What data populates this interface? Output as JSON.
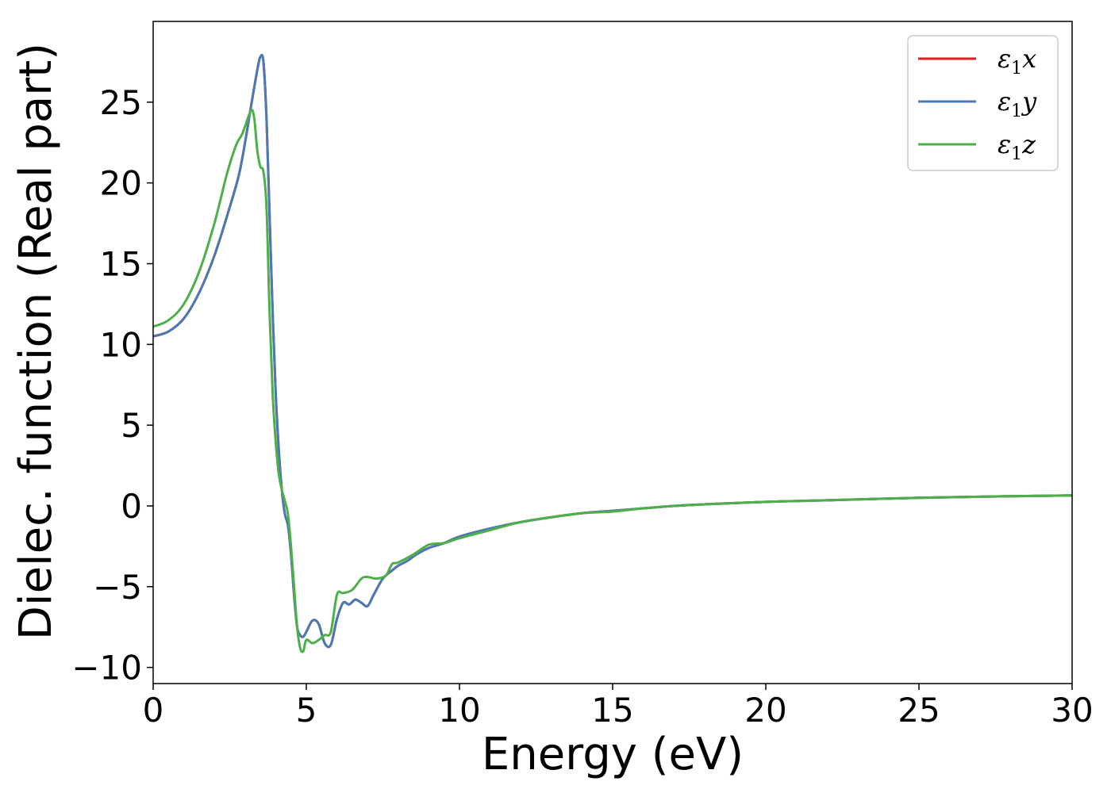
{
  "chart_data": {
    "type": "line",
    "xlabel": "Energy (eV)",
    "ylabel": "Dielec. function (Real part)",
    "xlim": [
      0,
      30
    ],
    "ylim": [
      -11,
      30
    ],
    "xticks": [
      0,
      5,
      10,
      15,
      20,
      25,
      30
    ],
    "yticks": [
      -10,
      -5,
      0,
      5,
      10,
      15,
      20,
      25
    ],
    "xtick_labels": [
      "0",
      "5",
      "10",
      "15",
      "20",
      "25",
      "30"
    ],
    "ytick_labels": [
      "−10",
      "−5",
      "0",
      "5",
      "10",
      "15",
      "20",
      "25"
    ],
    "grid": false,
    "legend_position": "top-right",
    "series": [
      {
        "name": "ε₁x",
        "legend_base": "ε",
        "legend_sub": "1",
        "legend_tail": "x",
        "color": "#e41a1c",
        "x": [
          0,
          0.5,
          1.0,
          1.5,
          2.0,
          2.5,
          2.8,
          3.0,
          3.2,
          3.4,
          3.5,
          3.6,
          3.7,
          3.8,
          3.9,
          4.0,
          4.1,
          4.2,
          4.3,
          4.4,
          4.5,
          4.6,
          4.7,
          4.8,
          4.9,
          5.0,
          5.2,
          5.4,
          5.6,
          5.8,
          6.0,
          6.2,
          6.4,
          6.6,
          6.8,
          7.0,
          7.2,
          7.5,
          7.8,
          8.0,
          8.3,
          8.6,
          9.0,
          9.5,
          10.0,
          11.0,
          12.0,
          13.0,
          14.0,
          15.0,
          16.0,
          17.0,
          18.0,
          20.0,
          22.0,
          25.0,
          28.0,
          30.0
        ],
        "y": [
          10.5,
          10.8,
          11.6,
          13.2,
          15.5,
          18.5,
          20.5,
          22.5,
          24.8,
          27.0,
          27.8,
          27.5,
          24.0,
          18.0,
          12.0,
          7.0,
          3.5,
          1.0,
          -0.5,
          -1.2,
          -3.0,
          -5.5,
          -7.5,
          -8.0,
          -8.1,
          -7.8,
          -7.1,
          -7.3,
          -8.5,
          -8.6,
          -7.0,
          -6.0,
          -6.1,
          -5.8,
          -6.0,
          -6.2,
          -5.5,
          -4.5,
          -4.0,
          -3.7,
          -3.4,
          -3.0,
          -2.6,
          -2.3,
          -1.9,
          -1.4,
          -1.0,
          -0.7,
          -0.45,
          -0.3,
          -0.15,
          0.0,
          0.1,
          0.25,
          0.35,
          0.5,
          0.6,
          0.65
        ]
      },
      {
        "name": "ε₁y",
        "legend_base": "ε",
        "legend_sub": "1",
        "legend_tail": "y",
        "color": "#4a7ab4",
        "x": [
          0,
          0.5,
          1.0,
          1.5,
          2.0,
          2.5,
          2.8,
          3.0,
          3.2,
          3.4,
          3.5,
          3.6,
          3.7,
          3.8,
          3.9,
          4.0,
          4.1,
          4.2,
          4.3,
          4.4,
          4.5,
          4.6,
          4.7,
          4.8,
          4.9,
          5.0,
          5.2,
          5.4,
          5.6,
          5.8,
          6.0,
          6.2,
          6.4,
          6.6,
          6.8,
          7.0,
          7.2,
          7.5,
          7.8,
          8.0,
          8.3,
          8.6,
          9.0,
          9.5,
          10.0,
          11.0,
          12.0,
          13.0,
          14.0,
          15.0,
          16.0,
          17.0,
          18.0,
          20.0,
          22.0,
          25.0,
          28.0,
          30.0
        ],
        "y": [
          10.5,
          10.8,
          11.6,
          13.2,
          15.5,
          18.5,
          20.5,
          22.5,
          24.8,
          27.0,
          27.8,
          27.5,
          24.0,
          18.0,
          12.0,
          7.0,
          3.5,
          1.0,
          -0.5,
          -1.2,
          -3.0,
          -5.5,
          -7.5,
          -8.0,
          -8.1,
          -7.8,
          -7.1,
          -7.3,
          -8.5,
          -8.6,
          -7.0,
          -6.0,
          -6.1,
          -5.8,
          -6.0,
          -6.2,
          -5.5,
          -4.5,
          -4.0,
          -3.7,
          -3.4,
          -3.0,
          -2.6,
          -2.3,
          -1.9,
          -1.4,
          -1.0,
          -0.7,
          -0.45,
          -0.3,
          -0.15,
          0.0,
          0.1,
          0.25,
          0.35,
          0.5,
          0.6,
          0.65
        ]
      },
      {
        "name": "ε₁z",
        "legend_base": "ε",
        "legend_sub": "1",
        "legend_tail": "z",
        "color": "#4daf4a",
        "x": [
          0,
          0.5,
          1.0,
          1.5,
          2.0,
          2.4,
          2.7,
          2.9,
          3.0,
          3.2,
          3.3,
          3.4,
          3.5,
          3.6,
          3.7,
          3.8,
          3.9,
          4.0,
          4.1,
          4.2,
          4.3,
          4.4,
          4.5,
          4.6,
          4.7,
          4.8,
          4.9,
          5.0,
          5.2,
          5.4,
          5.6,
          5.8,
          6.0,
          6.2,
          6.5,
          6.8,
          7.0,
          7.3,
          7.6,
          7.8,
          8.0,
          8.5,
          9.0,
          9.5,
          10.0,
          11.0,
          12.0,
          13.0,
          14.0,
          15.0,
          16.0,
          17.0,
          18.0,
          20.0,
          22.0,
          25.0,
          28.0,
          30.0
        ],
        "y": [
          11.1,
          11.5,
          12.5,
          14.5,
          17.5,
          20.5,
          22.3,
          23.0,
          23.5,
          24.5,
          24.0,
          22.0,
          21.0,
          20.7,
          18.5,
          12.0,
          7.0,
          4.0,
          2.0,
          1.0,
          0.3,
          -0.5,
          -2.5,
          -5.0,
          -7.5,
          -8.8,
          -9.0,
          -8.3,
          -8.5,
          -8.3,
          -8.0,
          -7.8,
          -5.5,
          -5.4,
          -5.2,
          -4.5,
          -4.4,
          -4.5,
          -4.3,
          -3.6,
          -3.5,
          -3.0,
          -2.4,
          -2.3,
          -2.0,
          -1.5,
          -1.0,
          -0.7,
          -0.45,
          -0.35,
          -0.15,
          0.0,
          0.1,
          0.25,
          0.35,
          0.5,
          0.6,
          0.65
        ]
      }
    ]
  }
}
